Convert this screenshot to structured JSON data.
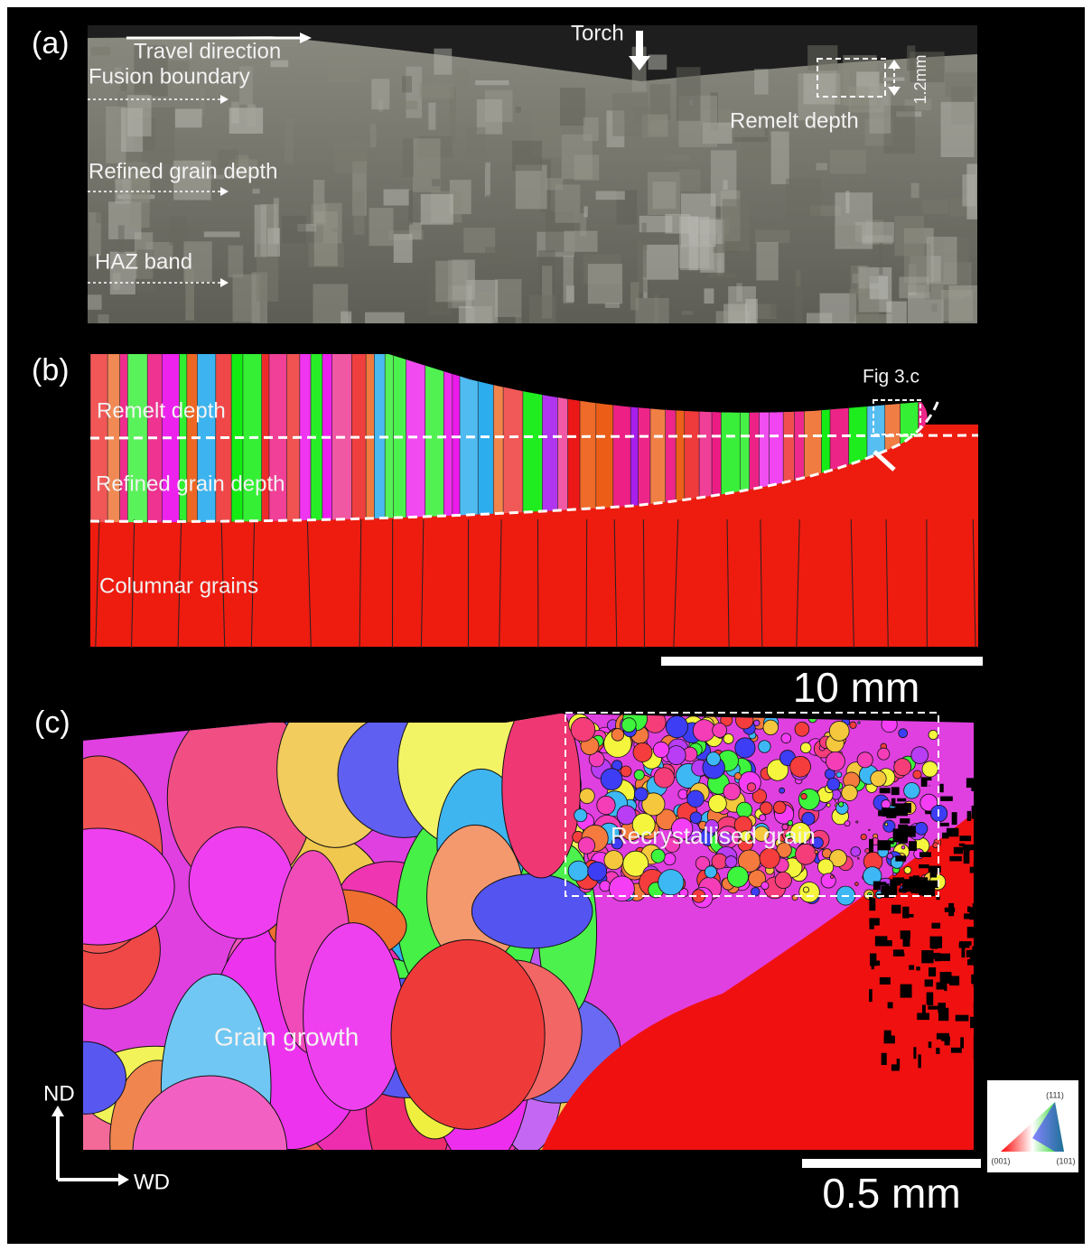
{
  "panel_a": {
    "label": "(a)",
    "annotations": {
      "travel_direction": "Travel direction",
      "torch": "Torch",
      "fusion_boundary": "Fusion boundary",
      "remelt_depth": "Remelt depth",
      "depth": "1.2mm",
      "refined_grain_depth": "Refined grain depth",
      "haz_band": "HAZ band"
    }
  },
  "panel_b": {
    "label": "(b)",
    "annotations": {
      "fig_ref": "Fig 3.c",
      "remelt_depth": "Remelt depth",
      "refined_grain_depth": "Refined grain depth",
      "columnar_grains": "Columnar grains"
    },
    "scale_bar": "10 mm"
  },
  "panel_c": {
    "label": "(c)",
    "annotations": {
      "recrystallised_grain": "Recrystallised grain",
      "grain_growth": "Grain growth"
    },
    "axes": {
      "nd": "ND",
      "wd": "WD"
    },
    "scale_bar": "0.5 mm",
    "ipf_legend": {
      "top": "(111)",
      "left": "(001)",
      "right": "(101)"
    }
  }
}
